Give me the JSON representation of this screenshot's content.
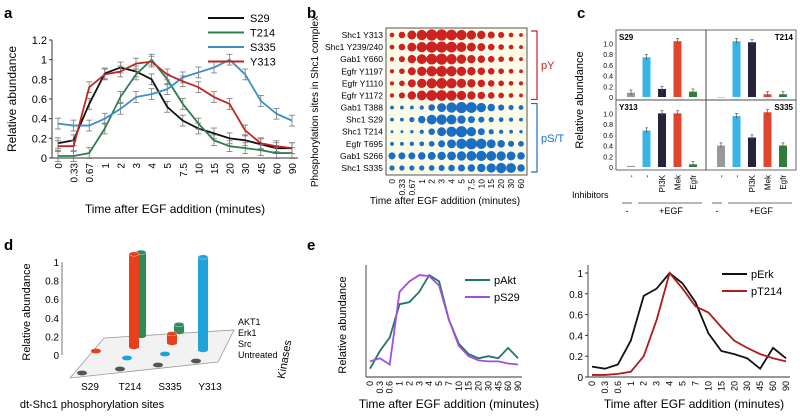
{
  "panel_labels": {
    "a": "a",
    "b": "b",
    "c": "c",
    "d": "d",
    "e": "e"
  },
  "chart_data": [
    {
      "id": "a",
      "type": "line",
      "ylabel": "Relative abundance",
      "xlabel": "Time after EGF addition (minutes)",
      "categories": [
        "0",
        "0.33",
        "0.67",
        "1",
        "2",
        "3",
        "4",
        "5",
        "7.5",
        "10",
        "15",
        "20",
        "30",
        "45",
        "60",
        "90"
      ],
      "yticks": [
        "0",
        "0.2",
        "0.4",
        "0.6",
        "0.8",
        "1",
        "1.2"
      ],
      "ylim": [
        0,
        1.2
      ],
      "series": [
        {
          "name": "S29",
          "color": "#111111",
          "values": [
            0.15,
            0.18,
            0.55,
            0.86,
            0.92,
            0.88,
            0.8,
            0.52,
            0.38,
            0.3,
            0.25,
            0.2,
            0.18,
            0.14,
            0.1,
            0.1
          ]
        },
        {
          "name": "T214",
          "color": "#2e7d4f",
          "values": [
            0.02,
            0.02,
            0.05,
            0.3,
            0.62,
            0.85,
            1.0,
            0.8,
            0.55,
            0.35,
            0.18,
            0.12,
            0.1,
            0.08,
            0.05,
            0.05
          ]
        },
        {
          "name": "S335",
          "color": "#3a8fc6",
          "values": [
            0.35,
            0.33,
            0.33,
            0.4,
            0.5,
            0.62,
            0.65,
            0.7,
            0.82,
            0.87,
            0.92,
            1.0,
            0.85,
            0.58,
            0.45,
            0.38
          ]
        },
        {
          "name": "Y313",
          "color": "#c02525",
          "values": [
            0.12,
            0.12,
            0.72,
            0.85,
            0.88,
            0.96,
            0.98,
            0.85,
            0.78,
            0.72,
            0.62,
            0.55,
            0.28,
            0.15,
            0.12,
            0.1
          ]
        }
      ]
    },
    {
      "id": "b",
      "type": "bubble",
      "ylabel": "Phosphorylation sites in Shc1 complex",
      "xlabel": "Time after EGF addition (minutes)",
      "categories": [
        "0",
        "0.33",
        "0.67",
        "1",
        "2",
        "3",
        "4",
        "5",
        "7.5",
        "10",
        "15",
        "20",
        "30",
        "60"
      ],
      "rows": [
        "Shc1 Y313",
        "Shc1 Y239/240",
        "Gab1 Y660",
        "Egfr Y1197",
        "Egfr Y1110",
        "Egfr Y1172",
        "Gab1 T388",
        "Shc1 S29",
        "Shc1 T214",
        "Egfr T695",
        "Gab1 S266",
        "Shc1 S335"
      ],
      "group_labels": [
        "pY",
        "pS/T"
      ],
      "group_colors": [
        "#cc2222",
        "#1a6fc4"
      ],
      "pY_values": [
        [
          0.3,
          0.5,
          0.75,
          0.9,
          1,
          1,
          0.95,
          0.9,
          0.8,
          0.7,
          0.55,
          0.45,
          0.3,
          0.2
        ],
        [
          0.3,
          0.5,
          0.75,
          0.9,
          1,
          1,
          0.95,
          0.85,
          0.75,
          0.65,
          0.5,
          0.4,
          0.3,
          0.2
        ],
        [
          0.25,
          0.45,
          0.7,
          0.85,
          0.95,
          1,
          0.9,
          0.8,
          0.7,
          0.6,
          0.5,
          0.4,
          0.3,
          0.2
        ],
        [
          0.25,
          0.4,
          0.65,
          0.8,
          0.9,
          0.95,
          0.9,
          0.8,
          0.7,
          0.6,
          0.5,
          0.4,
          0.3,
          0.2
        ],
        [
          0.25,
          0.4,
          0.65,
          0.8,
          0.9,
          0.95,
          0.9,
          0.8,
          0.7,
          0.6,
          0.5,
          0.4,
          0.3,
          0.25
        ],
        [
          0.25,
          0.45,
          0.7,
          0.85,
          0.95,
          0.95,
          0.9,
          0.8,
          0.7,
          0.6,
          0.5,
          0.4,
          0.3,
          0.2
        ]
      ],
      "pST_values": [
        [
          0.2,
          0.2,
          0.2,
          0.25,
          0.5,
          0.75,
          0.9,
          1,
          0.95,
          0.8,
          0.6,
          0.45,
          0.35,
          0.3
        ],
        [
          0.2,
          0.2,
          0.35,
          0.6,
          0.85,
          0.9,
          0.85,
          0.7,
          0.55,
          0.45,
          0.35,
          0.3,
          0.25,
          0.2
        ],
        [
          0.1,
          0.1,
          0.15,
          0.25,
          0.5,
          0.75,
          0.9,
          1,
          0.8,
          0.55,
          0.35,
          0.25,
          0.2,
          0.15
        ],
        [
          0.2,
          0.2,
          0.25,
          0.3,
          0.4,
          0.55,
          0.75,
          0.9,
          1,
          0.9,
          0.75,
          0.6,
          0.45,
          0.4
        ],
        [
          0.55,
          0.55,
          0.55,
          0.6,
          0.65,
          0.7,
          0.75,
          0.8,
          0.85,
          0.9,
          0.85,
          0.8,
          0.75,
          0.6
        ],
        [
          0.35,
          0.35,
          0.35,
          0.35,
          0.4,
          0.45,
          0.5,
          0.55,
          0.6,
          0.7,
          0.8,
          0.9,
          0.85,
          0.6
        ]
      ]
    },
    {
      "id": "c",
      "type": "bar",
      "ylabel": "Relative abundance",
      "yticks": [
        "0",
        "0.2",
        "0.4",
        "0.6",
        "0.8",
        "1.0"
      ],
      "ylim": [
        0,
        1.1
      ],
      "categories": [
        "-",
        "-",
        "PI3K",
        "Mek",
        "Egfr"
      ],
      "bar_colors": [
        "#999999",
        "#35b6e5",
        "#26233a",
        "#e0452e",
        "#2e7d3a"
      ],
      "inhibitors_label": "Inhibitors",
      "group_labels": [
        "-",
        "+EGF"
      ],
      "subplots": [
        {
          "title": "S29",
          "values": [
            0.08,
            0.74,
            0.15,
            1.04,
            0.1
          ]
        },
        {
          "title": "T214",
          "values": [
            0.0,
            1.04,
            1.02,
            0.05,
            0.05
          ]
        },
        {
          "title": "Y313",
          "values": [
            0.02,
            0.68,
            1.0,
            1.0,
            0.05
          ]
        },
        {
          "title": "S335",
          "values": [
            0.4,
            0.95,
            0.55,
            1.02,
            0.4
          ]
        }
      ]
    },
    {
      "id": "d",
      "type": "bar3d",
      "ylabel": "Relative abundance",
      "xlabel": "dt-Shc1 phosphorylation sites",
      "zlabel": "Kinases",
      "yticks": [
        "0",
        "0.2",
        "0.4",
        "0.6",
        "0.8",
        "1"
      ],
      "ylim": [
        0,
        1
      ],
      "sites": [
        "S29",
        "T214",
        "S335",
        "Y313"
      ],
      "kinases": [
        "AKT1",
        "Erk1",
        "Src",
        "Untreated"
      ],
      "kinase_colors": [
        "#2e8b57",
        "#e8401c",
        "#1fa3d8",
        "#555555"
      ],
      "values": [
        {
          "site": "S29",
          "kinase": "Untreated",
          "value": 0.02
        },
        {
          "site": "T214",
          "kinase": "Untreated",
          "value": 0.02
        },
        {
          "site": "S335",
          "kinase": "Untreated",
          "value": 0.04
        },
        {
          "site": "Y313",
          "kinase": "Untreated",
          "value": 0.02
        },
        {
          "site": "T214",
          "kinase": "Src",
          "value": 0.05
        },
        {
          "site": "S335",
          "kinase": "Src",
          "value": 0.05
        },
        {
          "site": "Y313",
          "kinase": "Src",
          "value": 1.0
        },
        {
          "site": "S29",
          "kinase": "Erk1",
          "value": 0.05
        },
        {
          "site": "T214",
          "kinase": "Erk1",
          "value": 1.0
        },
        {
          "site": "S335",
          "kinase": "Erk1",
          "value": 0.1
        },
        {
          "site": "T214",
          "kinase": "AKT1",
          "value": 0.9
        },
        {
          "site": "S335",
          "kinase": "AKT1",
          "value": 0.08
        }
      ]
    },
    {
      "id": "e1",
      "type": "line",
      "ylabel": "Relative abundance",
      "xlabel": "Time after EGF addition (minutes)",
      "categories": [
        "0",
        "0.3",
        "0.6",
        "1",
        "2",
        "3",
        "4",
        "5",
        "7",
        "10",
        "15",
        "20",
        "30",
        "45",
        "60",
        "90"
      ],
      "series": [
        {
          "name": "pAkt",
          "color": "#1e7a5f",
          "values": [
            0.08,
            0.25,
            0.38,
            0.7,
            0.72,
            0.82,
            0.98,
            0.92,
            0.55,
            0.32,
            0.22,
            0.18,
            0.2,
            0.18,
            0.28,
            0.18
          ]
        },
        {
          "name": "pS29",
          "color": "#a24fe0",
          "values": [
            0.15,
            0.18,
            0.12,
            0.82,
            0.92,
            0.98,
            0.97,
            0.88,
            0.55,
            0.3,
            0.2,
            0.16,
            0.15,
            0.15,
            0.13,
            0.12
          ]
        }
      ]
    },
    {
      "id": "e2",
      "type": "line",
      "ylabel": "",
      "xlabel": "Time after EGF addition (minutes)",
      "categories": [
        "0",
        "0.3",
        "0.6",
        "1",
        "2",
        "3",
        "4",
        "5",
        "7",
        "10",
        "15",
        "20",
        "30",
        "45",
        "60",
        "90"
      ],
      "yticks": [
        "0",
        "0.2",
        "0.4",
        "0.6",
        "0.8",
        "1"
      ],
      "ylim": [
        0,
        1
      ],
      "series": [
        {
          "name": "pErk",
          "color": "#111111",
          "values": [
            0.1,
            0.08,
            0.12,
            0.35,
            0.78,
            0.85,
            1.0,
            0.9,
            0.72,
            0.42,
            0.25,
            0.22,
            0.18,
            0.08,
            0.28,
            0.18
          ]
        },
        {
          "name": "pT214",
          "color": "#b01a1a",
          "values": [
            0.02,
            0.02,
            0.03,
            0.05,
            0.2,
            0.55,
            1.0,
            0.85,
            0.68,
            0.62,
            0.48,
            0.35,
            0.28,
            0.22,
            0.18,
            0.15
          ]
        }
      ]
    }
  ]
}
